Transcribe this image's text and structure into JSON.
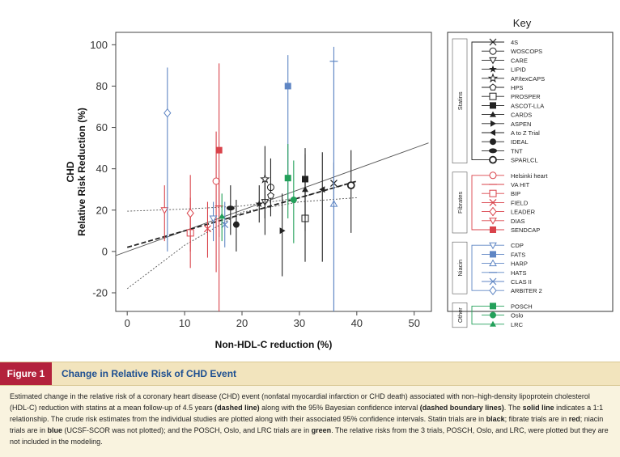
{
  "figure": {
    "tag": "Figure 1",
    "title": "Change in Relative Risk of CHD Event",
    "caption": [
      {
        "text": "Estimated change in the relative risk of a coronary heart disease (CHD) event (nonfatal myocardial infarction or CHD death) associated with non–high-density lipoprotein cholesterol (HDL-C) reduction with statins at a mean follow-up of 4.5 years ",
        "bold": false
      },
      {
        "text": "(dashed line)",
        "bold": true
      },
      {
        "text": " along with the 95% Bayesian confidence interval ",
        "bold": false
      },
      {
        "text": "(dashed boundary lines)",
        "bold": true
      },
      {
        "text": ". The ",
        "bold": false
      },
      {
        "text": "solid line",
        "bold": true
      },
      {
        "text": " indicates a 1:1 relationship. The crude risk estimates from the individual studies are plotted along with their associated 95% confidence intervals. Statin trials are in ",
        "bold": false
      },
      {
        "text": "black",
        "bold": true
      },
      {
        "text": "; fibrate trials are in ",
        "bold": false
      },
      {
        "text": "red",
        "bold": true
      },
      {
        "text": "; niacin trials are in ",
        "bold": false
      },
      {
        "text": "blue",
        "bold": true
      },
      {
        "text": " (UCSF-SCOR was not plotted); and the POSCH, Oslo, and LRC trials are in ",
        "bold": false
      },
      {
        "text": "green",
        "bold": true
      },
      {
        "text": ". The relative risks from the 3 trials, POSCH, Oslo, and LRC, were plotted but they are not included in the modeling.",
        "bold": false
      }
    ]
  },
  "chart_data": {
    "type": "scatter",
    "xlabel": "Non-HDL-C reduction (%)",
    "ylabel": "CHD\nRelative Risk Reduction (%)",
    "xlim": [
      -2,
      53
    ],
    "ylim": [
      -29,
      106
    ],
    "xticks": [
      0,
      10,
      20,
      30,
      40,
      50
    ],
    "yticks": [
      -20,
      0,
      20,
      40,
      60,
      80,
      100
    ],
    "grid": false,
    "colors": {
      "statin": "#222222",
      "fibrate": "#d9434b",
      "niacin": "#5f86c4",
      "other": "#23a05a"
    },
    "one_to_one_line": {
      "style": "solid",
      "points": [
        [
          -2,
          -2
        ],
        [
          52.5,
          52.5
        ]
      ]
    },
    "fit_line": {
      "style": "dashed",
      "points": [
        [
          0,
          2
        ],
        [
          40,
          34
        ]
      ]
    },
    "ci_upper": {
      "style": "dashed-boundary",
      "points": [
        [
          0,
          19.5
        ],
        [
          10,
          20.5
        ],
        [
          20,
          22
        ],
        [
          30,
          26
        ],
        [
          40,
          34
        ]
      ]
    },
    "ci_lower": {
      "style": "dashed-boundary",
      "points": [
        [
          0,
          -18
        ],
        [
          10,
          3
        ],
        [
          20,
          19
        ],
        [
          30,
          24
        ],
        [
          40,
          26
        ]
      ]
    },
    "points": [
      {
        "study": "4S",
        "group": "statin",
        "marker": "x",
        "x": 36,
        "y": 33,
        "lo": 21,
        "hi": 43
      },
      {
        "study": "WOSCOPS",
        "group": "statin",
        "marker": "circle-open",
        "x": 25,
        "y": 31,
        "lo": 17,
        "hi": 45
      },
      {
        "study": "CARE",
        "group": "statin",
        "marker": "triangle-down-open",
        "x": 24,
        "y": 24,
        "lo": 8,
        "hi": 37
      },
      {
        "study": "LIPID",
        "group": "statin",
        "marker": "star-filled",
        "x": 23,
        "y": 23,
        "lo": 14,
        "hi": 32
      },
      {
        "study": "AF/TexCAPS",
        "group": "statin",
        "marker": "star-open",
        "x": 24,
        "y": 35,
        "lo": 16,
        "hi": 51
      },
      {
        "study": "HPS",
        "group": "statin",
        "marker": "pentagon-open",
        "x": 25,
        "y": 27,
        "lo": 21,
        "hi": 33
      },
      {
        "study": "PROSPER",
        "group": "statin",
        "marker": "square-open",
        "x": 31,
        "y": 16,
        "lo": -5,
        "hi": 35
      },
      {
        "study": "ASCOT-LLA",
        "group": "statin",
        "marker": "square-filled",
        "x": 31,
        "y": 35,
        "lo": 16,
        "hi": 50
      },
      {
        "study": "CARDS",
        "group": "statin",
        "marker": "triangle-up-filled",
        "x": 31,
        "y": 30,
        "lo": 10,
        "hi": 47
      },
      {
        "study": "ASPEN",
        "group": "statin",
        "marker": "triangle-right-filled",
        "x": 27,
        "y": 10,
        "lo": -12,
        "hi": 28
      },
      {
        "study": "A to Z Trial",
        "group": "statin",
        "marker": "triangle-left-filled",
        "x": 34,
        "y": 30,
        "lo": -5,
        "hi": 48
      },
      {
        "study": "IDEAL",
        "group": "statin",
        "marker": "circle-filled",
        "x": 19,
        "y": 13,
        "lo": 0,
        "hi": 25
      },
      {
        "study": "TNT",
        "group": "statin",
        "marker": "ellipse-filled",
        "x": 18,
        "y": 21,
        "lo": 8,
        "hi": 32
      },
      {
        "study": "SPARCL",
        "group": "statin",
        "marker": "circle-dot",
        "x": 39,
        "y": 32,
        "lo": 9,
        "hi": 49
      },
      {
        "study": "Helsinki heart",
        "group": "fibrate",
        "marker": "circle-open",
        "x": 15.5,
        "y": 34,
        "lo": -10,
        "hi": 58
      },
      {
        "study": "VA HIT",
        "group": "fibrate",
        "marker": "bar",
        "x": 16,
        "y": 22,
        "lo": 7,
        "hi": 35
      },
      {
        "study": "BIP",
        "group": "fibrate",
        "marker": "square-open",
        "x": 11,
        "y": 9,
        "lo": -8,
        "hi": 26
      },
      {
        "study": "FIELD",
        "group": "fibrate",
        "marker": "x",
        "x": 14,
        "y": 11,
        "lo": -3,
        "hi": 24
      },
      {
        "study": "LEADER",
        "group": "fibrate",
        "marker": "diamond-open",
        "x": 11,
        "y": 18.5,
        "lo": 0,
        "hi": 37
      },
      {
        "study": "DIAS",
        "group": "fibrate",
        "marker": "triangle-down-open",
        "x": 6.5,
        "y": 20,
        "lo": 5,
        "hi": 32
      },
      {
        "study": "SENDCAP",
        "group": "fibrate",
        "marker": "square-filled",
        "x": 16,
        "y": 49,
        "lo": -30,
        "hi": 91
      },
      {
        "study": "CDP",
        "group": "niacin",
        "marker": "triangle-down-open",
        "x": 15,
        "y": 16,
        "lo": 5,
        "hi": 24
      },
      {
        "study": "FATS",
        "group": "niacin",
        "marker": "square-filled",
        "x": 28,
        "y": 80,
        "lo": 25,
        "hi": 95
      },
      {
        "study": "HARP",
        "group": "niacin",
        "marker": "triangle-up-open",
        "x": 36,
        "y": 23,
        "lo": -30,
        "hi": 92
      },
      {
        "study": "HATS",
        "group": "niacin",
        "marker": "bar",
        "x": 36,
        "y": 92,
        "lo": -30,
        "hi": 99
      },
      {
        "study": "CLAS II",
        "group": "niacin",
        "marker": "x",
        "x": 17,
        "y": 13,
        "lo": 2,
        "hi": 24
      },
      {
        "study": "ARBITER 2",
        "group": "niacin",
        "marker": "diamond-open",
        "x": 7,
        "y": 67,
        "lo": 0,
        "hi": 89
      },
      {
        "study": "POSCH",
        "group": "other",
        "marker": "square-filled",
        "x": 28,
        "y": 35.5,
        "lo": 16,
        "hi": 52
      },
      {
        "study": "Oslo",
        "group": "other",
        "marker": "circle-filled",
        "x": 29,
        "y": 25,
        "lo": 4,
        "hi": 44
      },
      {
        "study": "LRC",
        "group": "other",
        "marker": "triangle-up-filled",
        "x": 16.5,
        "y": 17,
        "lo": 5,
        "hi": 28
      }
    ],
    "legend": {
      "title": "Key",
      "placement": "right",
      "groups": [
        {
          "name": "Statins",
          "group": "statin",
          "items": [
            "4S",
            "WOSCOPS",
            "CARE",
            "LIPID",
            "AF/texCAPS",
            "HPS",
            "PROSPER",
            "ASCOT-LLA",
            "CARDS",
            "ASPEN",
            "A to Z Trial",
            "IDEAL",
            "TNT",
            "SPARLCL"
          ],
          "markers": [
            "x",
            "circle-open",
            "triangle-down-open",
            "star-filled",
            "star-open",
            "pentagon-open",
            "square-open",
            "square-filled",
            "triangle-up-filled",
            "triangle-right-filled",
            "triangle-left-filled",
            "circle-filled",
            "ellipse-filled",
            "circle-dot"
          ]
        },
        {
          "name": "Fibrates",
          "group": "fibrate",
          "items": [
            "Helsinki heart",
            "VA HIT",
            "BIP",
            "FIELD",
            "LEADER",
            "DIAS",
            "SENDCAP"
          ],
          "markers": [
            "circle-open",
            "bar",
            "square-open",
            "x",
            "diamond-open",
            "triangle-down-open",
            "square-filled"
          ]
        },
        {
          "name": "Niacin",
          "group": "niacin",
          "items": [
            "CDP",
            "FATS",
            "HARP",
            "HATS",
            "CLAS II",
            "ARBITER 2"
          ],
          "markers": [
            "triangle-down-open",
            "square-filled",
            "triangle-up-open",
            "bar",
            "x",
            "diamond-open"
          ]
        },
        {
          "name": "Other",
          "group": "other",
          "items": [
            "POSCH",
            "Oslo",
            "LRC"
          ],
          "markers": [
            "square-filled",
            "circle-filled",
            "triangle-up-filled"
          ]
        }
      ]
    }
  }
}
